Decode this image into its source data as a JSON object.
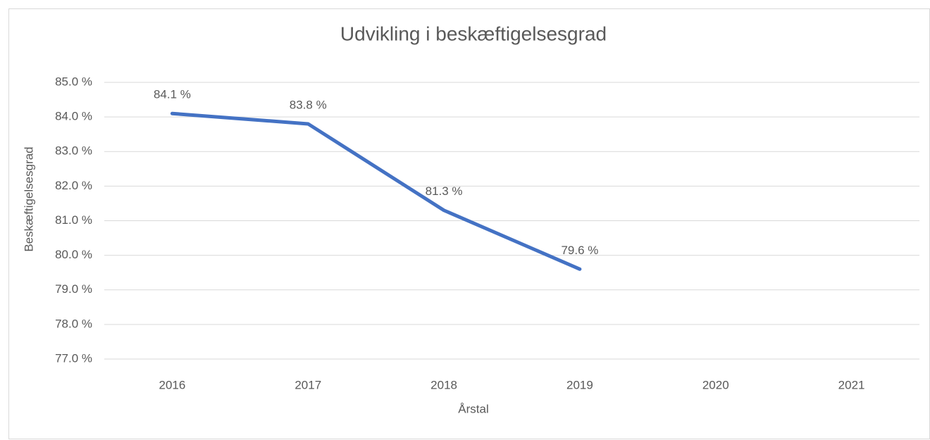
{
  "chart_data": {
    "type": "line",
    "title": "Udvikling i beskæftigelsesgrad",
    "x_label": "Årstal",
    "y_label": "Beskæftigelsesgrad",
    "categories": [
      "2016",
      "2017",
      "2018",
      "2019",
      "2020",
      "2021"
    ],
    "series": [
      {
        "name": "Beskæftigelsesgrad",
        "color": "#4472c4",
        "values": [
          84.1,
          83.8,
          81.3,
          79.6,
          null,
          null
        ],
        "value_labels": [
          "84.1 %",
          "83.8 %",
          "81.3 %",
          "79.6 %",
          null,
          null
        ]
      }
    ],
    "ylim": [
      77,
      85
    ],
    "yticks": [
      {
        "value": 77,
        "label": "77.0 %"
      },
      {
        "value": 78,
        "label": "78.0 %"
      },
      {
        "value": 79,
        "label": "79.0 %"
      },
      {
        "value": 80,
        "label": "80.0 %"
      },
      {
        "value": 81,
        "label": "81.0 %"
      },
      {
        "value": 82,
        "label": "82.0 %"
      },
      {
        "value": 83,
        "label": "83.0 %"
      },
      {
        "value": 84,
        "label": "84.0 %"
      },
      {
        "value": 85,
        "label": "85.0 %"
      }
    ],
    "grid": true
  }
}
